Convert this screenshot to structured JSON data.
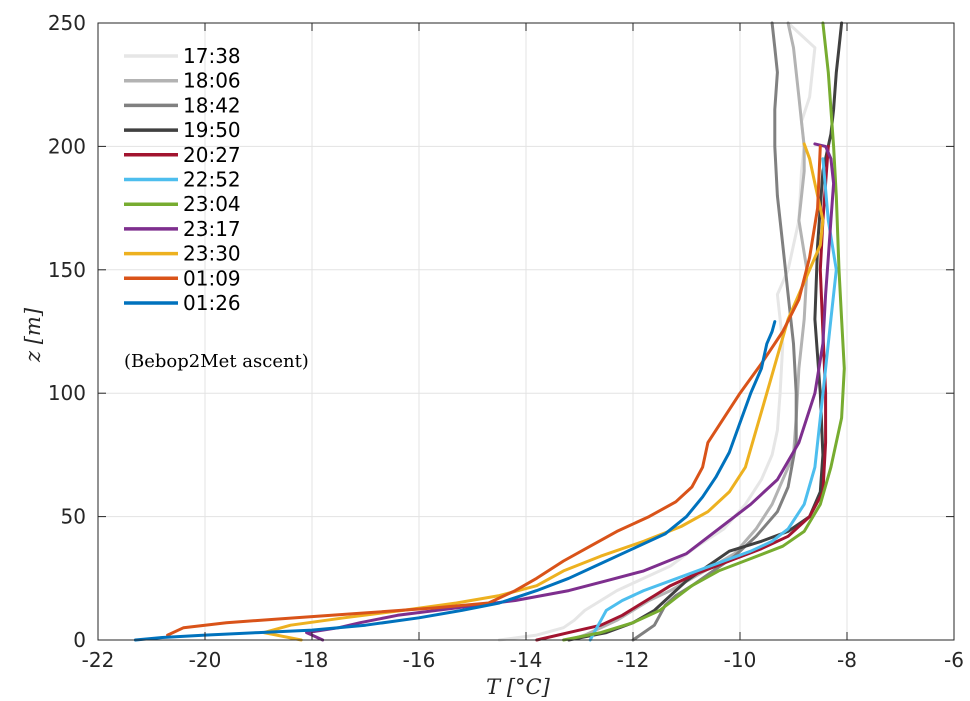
{
  "chart_data": {
    "type": "line",
    "title": "",
    "xlabel": "T [°C]",
    "ylabel": "z [m]",
    "xlim": [
      -22,
      -6
    ],
    "ylim": [
      0,
      250
    ],
    "xticks": [
      -22,
      -20,
      -18,
      -16,
      -14,
      -12,
      -10,
      -8,
      -6
    ],
    "yticks": [
      0,
      50,
      100,
      150,
      200,
      250
    ],
    "grid": true,
    "legend_position": "top-left",
    "legend_note": "(Bebop2Met ascent)",
    "series": [
      {
        "name": "17:38",
        "color": "#e6e6e6",
        "x": [
          -14.5,
          -13.8,
          -13.3,
          -13.1,
          -12.9,
          -12.6,
          -12.3,
          -11.8,
          -11.3,
          -10.8,
          -10.3,
          -9.9,
          -9.6,
          -9.4,
          -9.3,
          -9.25,
          -9.2,
          -9.3,
          -9.1,
          -8.9,
          -8.85,
          -8.8,
          -8.85,
          -8.7,
          -8.6,
          -9.1
        ],
        "y": [
          0,
          2,
          5,
          8,
          12,
          16,
          20,
          25,
          30,
          38,
          45,
          55,
          65,
          75,
          85,
          100,
          120,
          140,
          150,
          170,
          190,
          200,
          210,
          220,
          240,
          250
        ]
      },
      {
        "name": "18:06",
        "color": "#b3b3b3",
        "x": [
          -13.2,
          -12.9,
          -12.6,
          -12.3,
          -12.0,
          -11.7,
          -11.3,
          -10.9,
          -10.5,
          -10.1,
          -9.7,
          -9.4,
          -9.2,
          -9.0,
          -8.95,
          -8.9,
          -8.8,
          -8.75,
          -8.9,
          -8.8,
          -8.8,
          -8.85,
          -8.9,
          -9.0,
          -9.1
        ],
        "y": [
          0,
          2,
          5,
          8,
          12,
          16,
          20,
          25,
          30,
          35,
          45,
          55,
          65,
          75,
          90,
          110,
          130,
          150,
          170,
          190,
          200,
          210,
          220,
          240,
          250
        ]
      },
      {
        "name": "18:42",
        "color": "#808080",
        "x": [
          -12.0,
          -11.8,
          -11.6,
          -11.5,
          -11.4,
          -11.2,
          -10.9,
          -10.5,
          -10.1,
          -9.7,
          -9.3,
          -9.1,
          -8.95,
          -8.95,
          -9.0,
          -9.1,
          -9.2,
          -9.3,
          -9.35,
          -9.35,
          -9.3,
          -9.35,
          -9.4
        ],
        "y": [
          0,
          3,
          6,
          10,
          14,
          18,
          22,
          28,
          34,
          42,
          52,
          62,
          80,
          100,
          120,
          140,
          160,
          180,
          200,
          215,
          230,
          240,
          250
        ]
      },
      {
        "name": "19:50",
        "color": "#404040",
        "x": [
          -13.2,
          -12.5,
          -12.0,
          -11.6,
          -11.3,
          -11.0,
          -10.6,
          -10.2,
          -9.6,
          -9.1,
          -8.7,
          -8.5,
          -8.45,
          -8.5,
          -8.6,
          -8.55,
          -8.45,
          -8.3,
          -8.25,
          -8.2,
          -8.15,
          -8.1
        ],
        "y": [
          0,
          3,
          7,
          12,
          18,
          24,
          30,
          36,
          40,
          44,
          50,
          60,
          75,
          100,
          130,
          160,
          190,
          205,
          215,
          230,
          240,
          250
        ]
      },
      {
        "name": "20:27",
        "color": "#a2142f",
        "x": [
          -13.8,
          -13.2,
          -12.6,
          -12.2,
          -11.9,
          -11.6,
          -11.3,
          -10.8,
          -10.2,
          -9.6,
          -9.1,
          -8.7,
          -8.45,
          -8.4,
          -8.4,
          -8.45,
          -8.5,
          -8.45,
          -8.4,
          -8.35
        ],
        "y": [
          0,
          3,
          6,
          10,
          14,
          18,
          22,
          27,
          32,
          37,
          42,
          50,
          60,
          80,
          100,
          125,
          150,
          170,
          185,
          200
        ]
      },
      {
        "name": "22:52",
        "color": "#4dbeee",
        "x": [
          -12.8,
          -12.7,
          -12.6,
          -12.5,
          -12.2,
          -11.8,
          -11.3,
          -10.8,
          -10.3,
          -9.8,
          -9.4,
          -9.1,
          -8.8,
          -8.6,
          -8.5,
          -8.4,
          -8.3,
          -8.2,
          -8.35,
          -8.45
        ],
        "y": [
          0,
          4,
          8,
          12,
          16,
          20,
          24,
          28,
          32,
          36,
          40,
          45,
          55,
          70,
          90,
          110,
          130,
          150,
          170,
          195
        ]
      },
      {
        "name": "23:04",
        "color": "#77ac30",
        "x": [
          -13.3,
          -12.6,
          -12.0,
          -11.5,
          -11.2,
          -10.9,
          -10.4,
          -9.8,
          -9.2,
          -8.8,
          -8.5,
          -8.3,
          -8.1,
          -8.05,
          -8.1,
          -8.15,
          -8.2,
          -8.25,
          -8.35,
          -8.45
        ],
        "y": [
          0,
          3,
          7,
          12,
          17,
          22,
          28,
          33,
          38,
          44,
          55,
          70,
          90,
          110,
          130,
          150,
          180,
          200,
          230,
          250
        ]
      },
      {
        "name": "23:17",
        "color": "#7e2f8e",
        "x": [
          -17.8,
          -18.1,
          -17.5,
          -17.1,
          -16.4,
          -15.3,
          -14.2,
          -13.2,
          -12.5,
          -11.8,
          -11.0,
          -10.4,
          -9.8,
          -9.3,
          -8.9,
          -8.6,
          -8.45,
          -8.4,
          -8.35,
          -8.3,
          -8.25,
          -8.3,
          -8.4,
          -8.6
        ],
        "y": [
          0,
          3,
          5,
          7,
          10,
          13,
          16,
          20,
          24,
          28,
          35,
          45,
          55,
          65,
          80,
          100,
          120,
          140,
          155,
          170,
          185,
          195,
          200,
          201
        ]
      },
      {
        "name": "23:30",
        "color": "#edb120",
        "x": [
          -18.2,
          -18.9,
          -18.4,
          -17.4,
          -16.3,
          -15.3,
          -14.5,
          -13.8,
          -13.3,
          -12.6,
          -11.8,
          -11.1,
          -10.6,
          -10.2,
          -9.9,
          -9.7,
          -9.5,
          -9.3,
          -9.1,
          -8.8,
          -8.5,
          -8.45,
          -8.5,
          -8.6,
          -8.7,
          -8.8
        ],
        "y": [
          0,
          3,
          6,
          9,
          12,
          15,
          18,
          22,
          28,
          34,
          40,
          46,
          52,
          60,
          70,
          85,
          100,
          115,
          130,
          145,
          160,
          170,
          175,
          185,
          195,
          201
        ]
      },
      {
        "name": "01:09",
        "color": "#d95319",
        "x": [
          -20.7,
          -20.4,
          -19.6,
          -18.3,
          -17.0,
          -15.7,
          -14.7,
          -14.2,
          -13.8,
          -13.3,
          -12.8,
          -12.3,
          -11.7,
          -11.2,
          -10.9,
          -10.7,
          -10.6,
          -10.3,
          -10.0,
          -9.6,
          -9.2,
          -8.9,
          -8.7,
          -8.55,
          -8.5
        ],
        "y": [
          2,
          5,
          7,
          9,
          11,
          13,
          15,
          20,
          25,
          32,
          38,
          44,
          50,
          56,
          62,
          70,
          80,
          90,
          100,
          112,
          125,
          138,
          155,
          175,
          200
        ]
      },
      {
        "name": "01:26",
        "color": "#0072bd",
        "x": [
          -21.3,
          -20.8,
          -20.0,
          -19.0,
          -18.0,
          -17.0,
          -16.0,
          -15.2,
          -14.5,
          -13.8,
          -13.2,
          -12.6,
          -12.0,
          -11.4,
          -11.0,
          -10.7,
          -10.45,
          -10.2,
          -10.0,
          -9.8,
          -9.6,
          -9.5,
          -9.4,
          -9.35
        ],
        "y": [
          0,
          1,
          2,
          3,
          4,
          6,
          9,
          12,
          15,
          20,
          25,
          31,
          37,
          43,
          50,
          58,
          66,
          76,
          88,
          100,
          110,
          120,
          125,
          129
        ]
      }
    ]
  }
}
